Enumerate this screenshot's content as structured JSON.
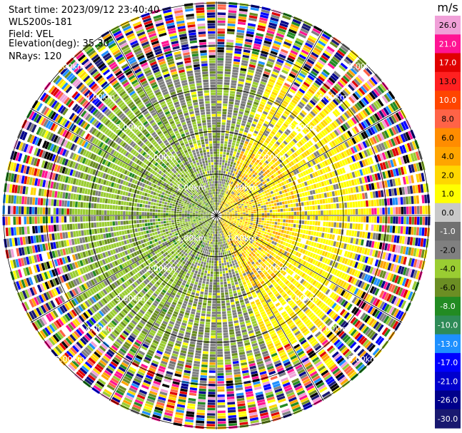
{
  "header": {
    "start_time": "Start time: 2023/09/12 23:40:40",
    "station": "WLS200s-181",
    "field": "Field: VEL",
    "elevation": "Elevation(deg): 35.30",
    "nrays": "NRays: 120"
  },
  "colorbar": {
    "unit": "m/s",
    "ticks": [
      "26.0",
      "21.0",
      "17.0",
      "13.0",
      "10.0",
      "8.0",
      "6.0",
      "4.0",
      "2.0",
      "1.0",
      "0.0",
      "-1.0",
      "-2.0",
      "-4.0",
      "-6.0",
      "-8.0",
      "-10.0",
      "-13.0",
      "-17.0",
      "-21.0",
      "-26.0",
      "-30.0"
    ],
    "colors": [
      "#f0a0d8",
      "#ff1493",
      "#e00000",
      "#ff2020",
      "#ff4500",
      "#ff6347",
      "#ff8c00",
      "#ffa500",
      "#ffd700",
      "#ffff00",
      "#c8c8c8",
      "#707070",
      "#808080",
      "#9acd32",
      "#6b8e23",
      "#228b22",
      "#2e8b57",
      "#1e90ff",
      "#0000ff",
      "#0000cd",
      "#00008b",
      "#191970"
    ]
  },
  "chart_data": {
    "type": "ppi",
    "field": "VEL",
    "unit": "m/s",
    "nrays": 120,
    "elevation_deg": 35.3,
    "range_rings": [
      {
        "label": "1.00km"
      },
      {
        "label": "2.00km"
      },
      {
        "label": "3.00km"
      },
      {
        "label": "4.00km"
      },
      {
        "label": "5.00km"
      }
    ],
    "color_levels": [
      26.0,
      21.0,
      17.0,
      13.0,
      10.0,
      8.0,
      6.0,
      4.0,
      2.0,
      1.0,
      0.0,
      -1.0,
      -2.0,
      -4.0,
      -6.0,
      -8.0,
      -10.0,
      -13.0,
      -17.0,
      -21.0,
      -26.0,
      -30.0
    ]
  }
}
